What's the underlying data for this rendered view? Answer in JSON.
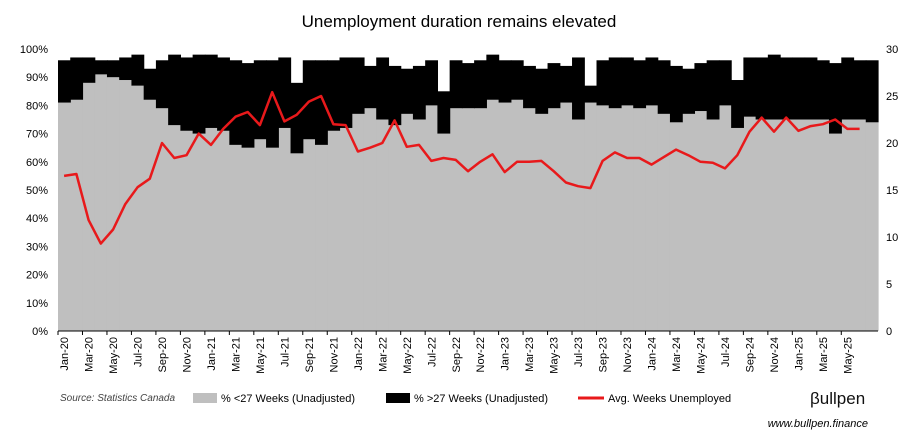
{
  "chart_data": {
    "type": "area",
    "title": "Unemployment duration remains elevated",
    "x": [
      "2020-01",
      "2020-02",
      "2020-03",
      "2020-04",
      "2020-05",
      "2020-06",
      "2020-07",
      "2020-08",
      "2020-09",
      "2020-10",
      "2020-11",
      "2020-12",
      "2021-01",
      "2021-02",
      "2021-03",
      "2021-04",
      "2021-05",
      "2021-06",
      "2021-07",
      "2021-08",
      "2021-09",
      "2021-10",
      "2021-11",
      "2021-12",
      "2022-01",
      "2022-02",
      "2022-03",
      "2022-04",
      "2022-05",
      "2022-06",
      "2022-07",
      "2022-08",
      "2022-09",
      "2022-10",
      "2022-11",
      "2022-12",
      "2023-01",
      "2023-02",
      "2023-03",
      "2023-04",
      "2023-05",
      "2023-06",
      "2023-07",
      "2023-08",
      "2023-09",
      "2023-10",
      "2023-11",
      "2023-12",
      "2024-01",
      "2024-02",
      "2024-03",
      "2024-04",
      "2024-05",
      "2024-06",
      "2024-07",
      "2024-08",
      "2024-09",
      "2024-10",
      "2024-11",
      "2024-12",
      "2025-01",
      "2025-02",
      "2025-03",
      "2025-04",
      "2025-05",
      "2025-06",
      "2025-07"
    ],
    "x_tick_labels": [
      "Jan-20",
      "Mar-20",
      "May-20",
      "Jul-20",
      "Sep-20",
      "Nov-20",
      "Jan-21",
      "Mar-21",
      "May-21",
      "Jul-21",
      "Sep-21",
      "Nov-21",
      "Jan-22",
      "Mar-22",
      "May-22",
      "Jul-22",
      "Sep-22",
      "Nov-22",
      "Jan-23",
      "Mar-23",
      "May-23",
      "Jul-23",
      "Sep-23",
      "Nov-23",
      "Jan-24",
      "Mar-24",
      "May-24",
      "Jul-24",
      "Sep-24",
      "Nov-24",
      "Jan-25",
      "Mar-25",
      "May-25"
    ],
    "y_left": {
      "ticks": [
        "0%",
        "10%",
        "20%",
        "30%",
        "40%",
        "50%",
        "60%",
        "70%",
        "80%",
        "90%",
        "100%"
      ],
      "ylim": [
        0,
        100
      ]
    },
    "y_right": {
      "ticks": [
        "0",
        "5",
        "10",
        "15",
        "20",
        "25",
        "30"
      ],
      "ylim": [
        0,
        30
      ]
    },
    "series": [
      {
        "name": "% <27 Weeks (Unadjusted)",
        "type": "area",
        "axis": "left",
        "color": "#bfbfbf",
        "values": [
          81,
          82,
          88,
          91,
          90,
          89,
          87,
          82,
          79,
          73,
          71,
          70,
          72,
          71,
          66,
          65,
          68,
          65,
          72,
          63,
          68,
          66,
          71,
          72,
          77,
          79,
          75,
          73,
          77,
          75,
          80,
          70,
          79,
          79,
          79,
          82,
          81,
          82,
          79,
          77,
          79,
          81,
          75,
          81,
          80,
          79,
          80,
          79,
          80,
          77,
          74,
          77,
          78,
          75,
          80,
          72,
          76,
          75,
          75,
          75,
          75,
          75,
          75,
          70,
          75,
          75,
          74
        ]
      },
      {
        "name": "% >27 Weeks (Unadjusted)",
        "type": "area",
        "axis": "left",
        "color": "#000000",
        "values": [
          96,
          97,
          97,
          96,
          96,
          97,
          98,
          93,
          96,
          98,
          97,
          98,
          98,
          97,
          96,
          95,
          96,
          96,
          97,
          88,
          96,
          96,
          96,
          97,
          97,
          94,
          97,
          94,
          93,
          94,
          96,
          85,
          96,
          95,
          96,
          98,
          96,
          96,
          94,
          93,
          95,
          94,
          97,
          87,
          96,
          97,
          97,
          96,
          97,
          96,
          94,
          93,
          95,
          96,
          96,
          89,
          97,
          97,
          98,
          97,
          97,
          97,
          96,
          95,
          97,
          96,
          96
        ]
      },
      {
        "name": "Avg. Weeks Unemployed",
        "type": "line",
        "axis": "right",
        "color": "#e8191b",
        "values": [
          16.5,
          16.7,
          11.8,
          9.3,
          10.8,
          13.5,
          15.3,
          16.2,
          20,
          18.4,
          18.7,
          21,
          19.8,
          21.5,
          22.8,
          23.3,
          21.9,
          25.4,
          22.3,
          23,
          24.4,
          25,
          22,
          21.9,
          19.1,
          19.5,
          20,
          22.4,
          19.6,
          19.8,
          18.1,
          18.4,
          18.2,
          17,
          18,
          18.8,
          16.9,
          18,
          18,
          18.1,
          17,
          15.8,
          15.4,
          15.2,
          18.1,
          19,
          18.4,
          18.4,
          17.7,
          18.5,
          19.3,
          18.7,
          18,
          17.9,
          17.3,
          18.7,
          21.2,
          22.7,
          21.2,
          22.7,
          21.3,
          21.8,
          22,
          22.5,
          21.5,
          21.5,
          null
        ]
      }
    ],
    "grid": false,
    "legend_position": "bottom"
  },
  "footer": {
    "source": "Source: Statistics Canada",
    "brand": "βullpen",
    "site": "www.bullpen.finance"
  }
}
